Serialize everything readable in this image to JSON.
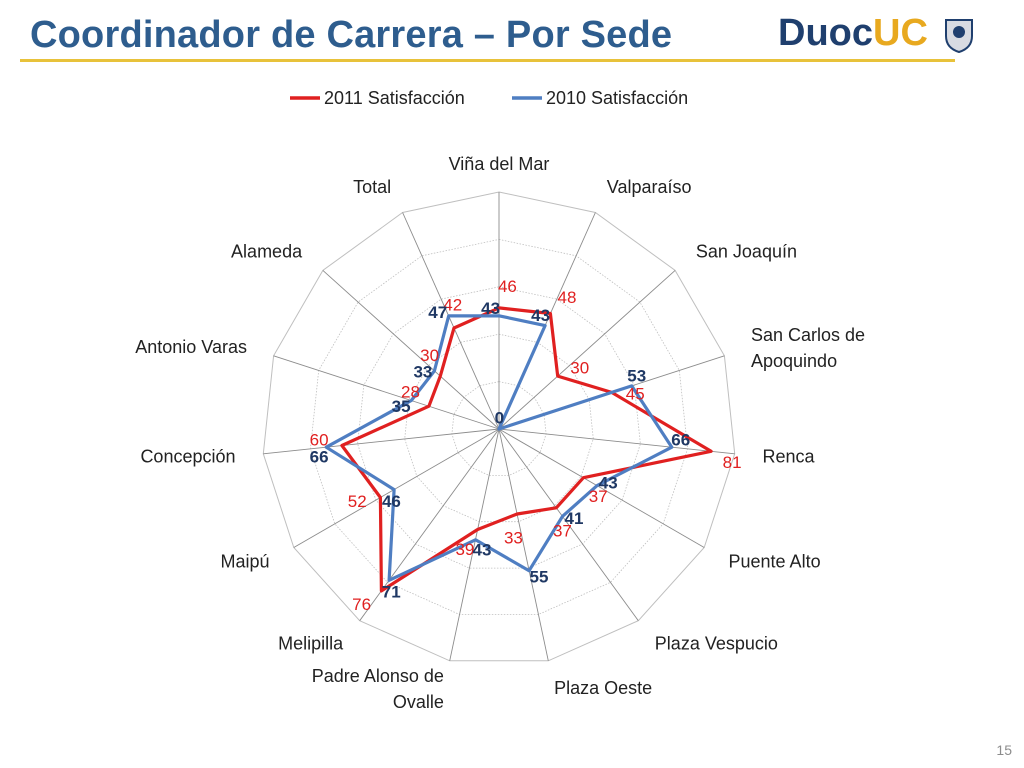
{
  "slide": {
    "title": "Coordinador de Carrera – Por Sede",
    "page_number": "15",
    "logo": {
      "text_part1": "Duoc",
      "text_part2": "UC"
    }
  },
  "colors": {
    "title": "#2e5d8e",
    "rule": "#e8c23a",
    "series_2011": "#e02020",
    "series_2010": "#4f7ec2",
    "label_2010": "#1f3864",
    "grid": "#bfbfbf"
  },
  "chart_data": {
    "type": "radar",
    "title": "",
    "legend_position": "top",
    "categories": [
      "Viña del Mar",
      "Valparaíso",
      "San Joaquín",
      "San Carlos de Apoquindo",
      "Renca",
      "Puente Alto",
      "Plaza Vespucio",
      "Plaza Oeste",
      "Padre Alonso de Ovalle",
      "Melipilla",
      "Maipú",
      "Concepción",
      "Antonio Varas",
      "Alameda",
      "Total"
    ],
    "range": [
      0,
      90
    ],
    "grid": true,
    "series": [
      {
        "name": "2011 Satisfacción",
        "color": "#e02020",
        "values": [
          46,
          48,
          30,
          45,
          81,
          37,
          37,
          33,
          39,
          76,
          52,
          60,
          28,
          30,
          42
        ]
      },
      {
        "name": "2010 Satisfacción",
        "color": "#4f7ec2",
        "values": [
          43,
          43,
          0,
          53,
          66,
          43,
          41,
          55,
          43,
          71,
          46,
          66,
          35,
          33,
          47
        ]
      }
    ]
  }
}
